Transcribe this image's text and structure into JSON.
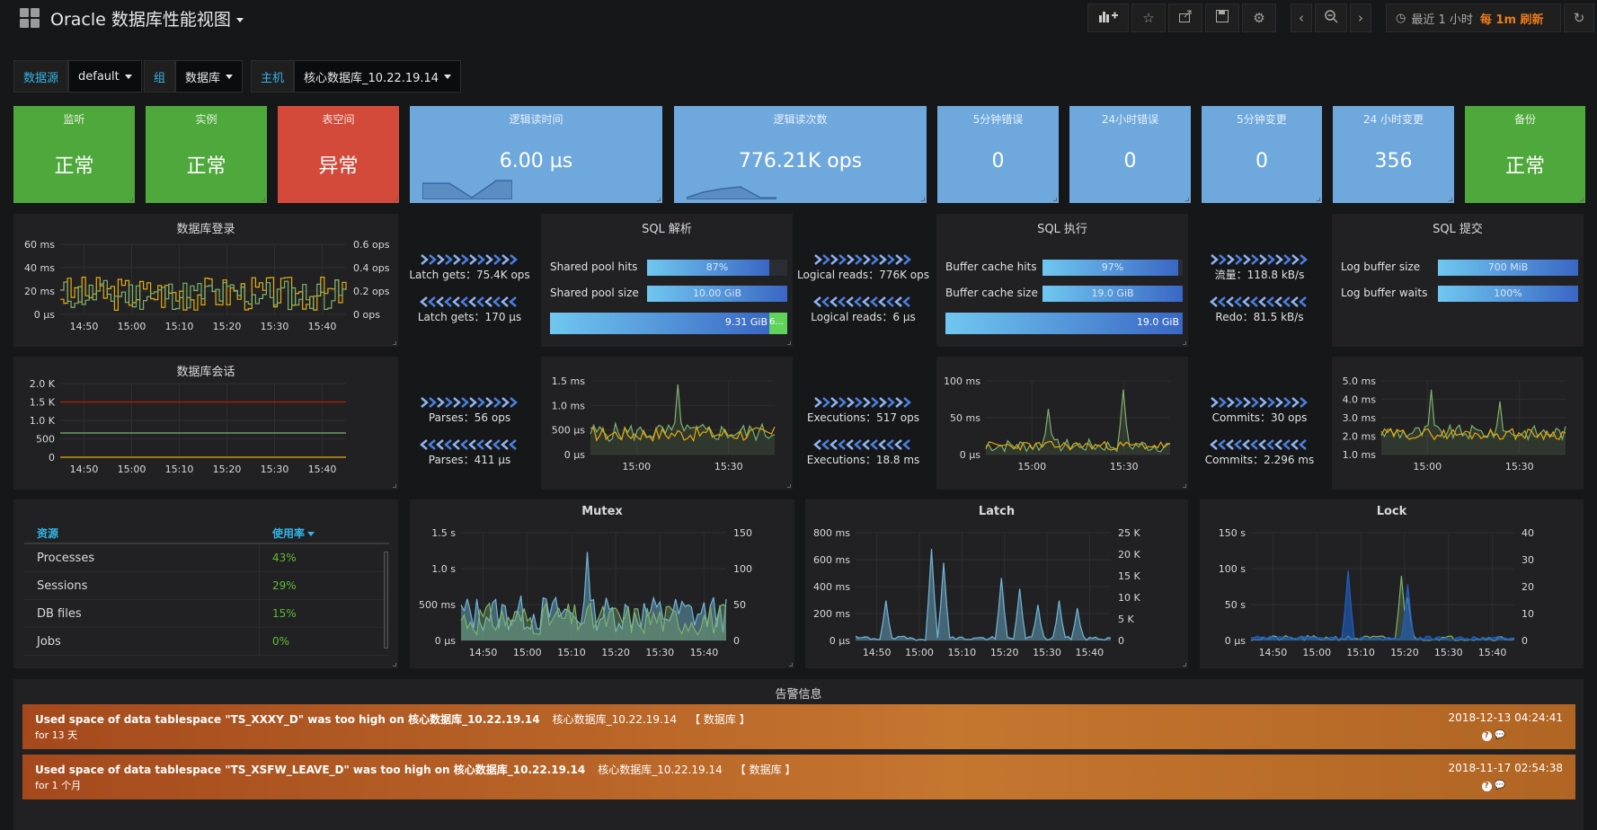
{
  "header": {
    "title": "Oracle 数据库性能视图",
    "time_range": "最近 1 小时",
    "refresh": "每 1m 刷新",
    "buttons": [
      "add-panel",
      "star",
      "share",
      "save",
      "settings",
      "time-back",
      "zoom-out",
      "time-forward",
      "refresh"
    ]
  },
  "variables": [
    {
      "label": "数据源",
      "value": "default"
    },
    {
      "label": "组",
      "value": "数据库"
    },
    {
      "label": "主机",
      "value": "核心数据库_10.22.19.14"
    }
  ],
  "stats": [
    {
      "title": "监听",
      "value": "正常",
      "color": "#4fa83b"
    },
    {
      "title": "实例",
      "value": "正常",
      "color": "#4fa83b"
    },
    {
      "title": "表空间",
      "value": "异常",
      "color": "#d44a3a"
    },
    {
      "title": "逻辑读时间",
      "value": "6.00 µs",
      "color": "#6fa8dc"
    },
    {
      "title": "逻辑读次数",
      "value": "776.21K ops",
      "color": "#6fa8dc"
    },
    {
      "title": "5分钟错误",
      "value": "0",
      "color": "#6fa8dc"
    },
    {
      "title": "24小时错误",
      "value": "0",
      "color": "#6fa8dc"
    },
    {
      "title": "5分钟变更",
      "value": "0",
      "color": "#6fa8dc"
    },
    {
      "title": "24 小时变更",
      "value": "356",
      "color": "#6fa8dc"
    },
    {
      "title": "备份",
      "value": "正常",
      "color": "#4fa83b"
    }
  ],
  "login_chart": {
    "title": "数据库登录",
    "y_left": [
      "60 ms",
      "40 ms",
      "20 ms",
      "0 µs"
    ],
    "y_right": [
      "0.6 ops",
      "0.4 ops",
      "0.2 ops",
      "0 ops"
    ],
    "x": [
      "14:50",
      "15:00",
      "15:10",
      "15:20",
      "15:30",
      "15:40"
    ]
  },
  "session_chart": {
    "title": "数据库会话",
    "y_left": [
      "2.0 K",
      "1.5 K",
      "1.0 K",
      "500",
      "0"
    ],
    "x": [
      "14:50",
      "15:00",
      "15:10",
      "15:20",
      "15:30",
      "15:40"
    ]
  },
  "flows": {
    "latch": {
      "top": "Latch gets：75.4K ops",
      "bottom": "Latch gets：170 µs"
    },
    "logical": {
      "top": "Logical reads：776K ops",
      "bottom": "Logical reads：6 µs"
    },
    "redo": {
      "top": "流量：118.8 kB/s",
      "bottom": "Redo：81.5 kB/s"
    },
    "parses": {
      "top": "Parses：56 ops",
      "bottom": "Parses：411 µs"
    },
    "exec": {
      "top": "Executions：517 ops",
      "bottom": "Executions：18.8 ms"
    },
    "commits": {
      "top": "Commits：30 ops",
      "bottom": "Commits：2.296 ms"
    }
  },
  "sql_parse": {
    "title": "SQL 解析",
    "bars": [
      {
        "label": "Shared pool hits",
        "text": "87%",
        "value": 0.87
      },
      {
        "label": "Shared pool size",
        "text": "10.00 GiB",
        "value": 1.0
      }
    ],
    "big": {
      "text": "9.31 GiB",
      "value": 0.931,
      "rest": "6..."
    }
  },
  "sql_exec": {
    "title": "SQL 执行",
    "bars": [
      {
        "label": "Buffer cache hits",
        "text": "97%",
        "value": 0.97
      },
      {
        "label": "Buffer cache size",
        "text": "19.0 GiB",
        "value": 1.0
      }
    ],
    "big": {
      "text": "19.0 GiB",
      "value": 1.0
    }
  },
  "sql_commit": {
    "title": "SQL 提交",
    "bars": [
      {
        "label": "Log buffer size",
        "text": "700 MiB",
        "value": 1.0
      },
      {
        "label": "Log buffer waits",
        "text": "100%",
        "value": 1.0
      }
    ]
  },
  "mini_parse": {
    "y": [
      "1.5 ms",
      "1.0 ms",
      "500 µs",
      "0 µs"
    ],
    "x": [
      "15:00",
      "15:30"
    ]
  },
  "mini_exec": {
    "y": [
      "100 ms",
      "50 ms",
      "0 µs"
    ],
    "x": [
      "15:00",
      "15:30"
    ]
  },
  "mini_commit": {
    "y": [
      "5.0 ms",
      "4.0 ms",
      "3.0 ms",
      "2.0 ms",
      "1.0 ms"
    ],
    "x": [
      "15:00",
      "15:30"
    ]
  },
  "resources": {
    "col1": "资源",
    "col2": "使用率",
    "rows": [
      {
        "name": "Processes",
        "pct": "43%"
      },
      {
        "name": "Sessions",
        "pct": "29%"
      },
      {
        "name": "DB files",
        "pct": "15%"
      },
      {
        "name": "Jobs",
        "pct": "0%"
      }
    ]
  },
  "mutex": {
    "title": "Mutex",
    "y_left": [
      "1.5 s",
      "1.0 s",
      "500 ms",
      "0 µs"
    ],
    "y_right": [
      "150",
      "100",
      "50",
      "0"
    ],
    "x": [
      "14:50",
      "15:00",
      "15:10",
      "15:20",
      "15:30",
      "15:40"
    ]
  },
  "latch": {
    "title": "Latch",
    "y_left": [
      "800 ms",
      "600 ms",
      "400 ms",
      "200 ms",
      "0 µs"
    ],
    "y_right": [
      "25 K",
      "20 K",
      "15 K",
      "10 K",
      "5 K",
      "0"
    ],
    "x": [
      "14:50",
      "15:00",
      "15:10",
      "15:20",
      "15:30",
      "15:40"
    ]
  },
  "lock": {
    "title": "Lock",
    "y_left": [
      "150 s",
      "100 s",
      "50 s",
      "0 µs"
    ],
    "y_right": [
      "40",
      "30",
      "20",
      "10",
      "0"
    ],
    "x": [
      "14:50",
      "15:00",
      "15:10",
      "15:20",
      "15:30",
      "15:40"
    ]
  },
  "alerts": {
    "title": "告警信息",
    "items": [
      {
        "msg": "Used space of data tablespace \"TS_XXXY_D\" was too high on 核心数据库_10.22.19.14",
        "host": "核心数据库_10.22.19.14",
        "group": "【 数据库 】",
        "duration": "for 13 天",
        "time": "2018-12-13 04:24:41"
      },
      {
        "msg": "Used space of data tablespace \"TS_XSFW_LEAVE_D\" was too high on 核心数据库_10.22.19.14",
        "host": "核心数据库_10.22.19.14",
        "group": "【 数据库 】",
        "duration": "for 1 个月",
        "time": "2018-11-17 02:54:38"
      }
    ]
  },
  "colors": {
    "ok": "#4fa83b",
    "err": "#d44a3a",
    "info": "#6fa8dc",
    "series_green": "#7eb26d",
    "series_yellow": "#e5ac0e",
    "series_blue": "#1f60c4"
  }
}
